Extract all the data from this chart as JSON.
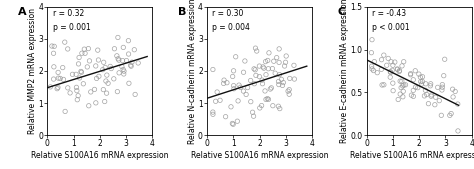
{
  "panels": [
    {
      "label": "A",
      "r": "r = 0.32",
      "p": "p = 0.001",
      "xlabel": "Relative S100A16 mRNA expression",
      "ylabel": "Relative MMP2 mRNA expression",
      "xlim": [
        0,
        4
      ],
      "ylim": [
        0,
        4
      ],
      "xticks": [
        0,
        1,
        2,
        3,
        4
      ],
      "yticks": [
        0,
        1,
        2,
        3,
        4
      ],
      "trend_x": [
        0,
        3.8
      ],
      "trend_y": [
        1.48,
        2.45
      ],
      "seed": 10,
      "slope": 0.25,
      "intercept": 1.5,
      "noise": 0.5,
      "ymin": 0.1,
      "ymax": 3.8
    },
    {
      "label": "B",
      "r": "r = 0.30",
      "p": "p = 0.004",
      "xlabel": "Relative S100A16 mRNA expression",
      "ylabel": "Relative N-cadherin mRNA expression",
      "xlim": [
        0,
        4
      ],
      "ylim": [
        0,
        4
      ],
      "xticks": [
        0,
        1,
        2,
        3,
        4
      ],
      "yticks": [
        0,
        1,
        2,
        3,
        4
      ],
      "trend_x": [
        0,
        3.8
      ],
      "trend_y": [
        1.15,
        2.15
      ],
      "seed": 20,
      "slope": 0.22,
      "intercept": 1.2,
      "noise": 0.55,
      "ymin": 0.1,
      "ymax": 3.8
    },
    {
      "label": "C",
      "r": "r = -0.43",
      "p": "p < 0.001",
      "xlabel": "Relative S100A16 mRNA expression",
      "ylabel": "Relative E-cadherin mRNA expression",
      "xlim": [
        0,
        4
      ],
      "ylim": [
        0.0,
        1.5
      ],
      "xticks": [
        0,
        1,
        2,
        3,
        4
      ],
      "yticks": [
        0.0,
        0.5,
        1.0,
        1.5
      ],
      "trend_x": [
        0,
        3.5
      ],
      "trend_y": [
        0.88,
        0.35
      ],
      "seed": 30,
      "slope": -0.15,
      "intercept": 0.88,
      "noise": 0.15,
      "ymin": 0.05,
      "ymax": 1.45
    }
  ],
  "marker_edge_color": "#999999",
  "line_color": "#111111",
  "font_size": 5.5,
  "panel_label_size": 8,
  "stats_font_size": 5.5
}
